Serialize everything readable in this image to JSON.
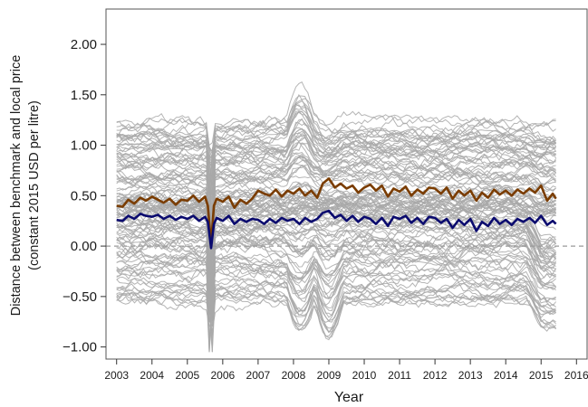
{
  "chart_data": {
    "type": "line",
    "xlabel": "Year",
    "ylabel_line1": "Distance between benchmark and local price",
    "ylabel_line2": "(constant 2015 USD per litre)",
    "xlim": [
      2002.7,
      2016.3
    ],
    "ylim": [
      -1.12,
      2.35
    ],
    "x_ticks": [
      2003,
      2004,
      2005,
      2006,
      2007,
      2008,
      2009,
      2010,
      2011,
      2012,
      2013,
      2014,
      2015,
      2016
    ],
    "x_tick_labels": [
      "2003",
      "2004",
      "2005",
      "2006",
      "2007",
      "2008",
      "2009",
      "2010",
      "2011",
      "2012",
      "2013",
      "2014",
      "2015",
      "2016"
    ],
    "y_ticks": [
      -1.0,
      -0.5,
      0.0,
      0.5,
      1.0,
      1.5,
      2.0
    ],
    "y_tick_labels": [
      "−1.00",
      "−0.50",
      "0.00",
      "0.50",
      "1.00",
      "1.50",
      "2.00"
    ],
    "reference_line": {
      "y": 0.0,
      "style": "dashed",
      "color": "#9a9a9a"
    },
    "grid": false,
    "gray_series": {
      "color": "#a8a8a8",
      "x_start": 2003.0,
      "x_end": 2015.42,
      "points": 148,
      "count": 120,
      "offset_range": [
        -0.55,
        1.25
      ],
      "note": "many individual country series drawn in gray around the summary lines"
    },
    "series": [
      {
        "color": "#7a3c00",
        "x": [
          2003.0,
          2003.17,
          2003.33,
          2003.5,
          2003.67,
          2003.83,
          2004.0,
          2004.17,
          2004.33,
          2004.5,
          2004.67,
          2004.83,
          2005.0,
          2005.17,
          2005.33,
          2005.5,
          2005.58,
          2005.67,
          2005.75,
          2005.83,
          2006.0,
          2006.17,
          2006.33,
          2006.5,
          2006.67,
          2006.83,
          2007.0,
          2007.17,
          2007.33,
          2007.5,
          2007.67,
          2007.83,
          2008.0,
          2008.17,
          2008.33,
          2008.5,
          2008.67,
          2008.83,
          2009.0,
          2009.17,
          2009.33,
          2009.5,
          2009.67,
          2009.83,
          2010.0,
          2010.17,
          2010.33,
          2010.5,
          2010.67,
          2010.83,
          2011.0,
          2011.17,
          2011.33,
          2011.5,
          2011.67,
          2011.83,
          2012.0,
          2012.17,
          2012.33,
          2012.5,
          2012.67,
          2012.83,
          2013.0,
          2013.17,
          2013.33,
          2013.5,
          2013.67,
          2013.83,
          2014.0,
          2014.17,
          2014.33,
          2014.5,
          2014.67,
          2014.83,
          2015.0,
          2015.17,
          2015.33,
          2015.42
        ],
        "values": [
          0.4,
          0.39,
          0.46,
          0.42,
          0.48,
          0.45,
          0.49,
          0.46,
          0.43,
          0.47,
          0.41,
          0.46,
          0.45,
          0.5,
          0.44,
          0.49,
          0.4,
          0.02,
          0.4,
          0.47,
          0.44,
          0.49,
          0.38,
          0.46,
          0.42,
          0.47,
          0.55,
          0.52,
          0.5,
          0.56,
          0.49,
          0.55,
          0.52,
          0.57,
          0.5,
          0.55,
          0.48,
          0.62,
          0.67,
          0.58,
          0.62,
          0.57,
          0.6,
          0.53,
          0.58,
          0.61,
          0.55,
          0.6,
          0.49,
          0.57,
          0.54,
          0.59,
          0.5,
          0.56,
          0.52,
          0.58,
          0.57,
          0.52,
          0.58,
          0.47,
          0.55,
          0.5,
          0.55,
          0.45,
          0.53,
          0.48,
          0.56,
          0.51,
          0.55,
          0.5,
          0.56,
          0.52,
          0.57,
          0.53,
          0.6,
          0.45,
          0.52,
          0.47
        ]
      },
      {
        "color": "#0a0a6e",
        "x": [
          2003.0,
          2003.17,
          2003.33,
          2003.5,
          2003.67,
          2003.83,
          2004.0,
          2004.17,
          2004.33,
          2004.5,
          2004.67,
          2004.83,
          2005.0,
          2005.17,
          2005.33,
          2005.5,
          2005.58,
          2005.67,
          2005.75,
          2005.83,
          2006.0,
          2006.17,
          2006.33,
          2006.5,
          2006.67,
          2006.83,
          2007.0,
          2007.17,
          2007.33,
          2007.5,
          2007.67,
          2007.83,
          2008.0,
          2008.17,
          2008.33,
          2008.5,
          2008.67,
          2008.83,
          2009.0,
          2009.17,
          2009.33,
          2009.5,
          2009.67,
          2009.83,
          2010.0,
          2010.17,
          2010.33,
          2010.5,
          2010.67,
          2010.83,
          2011.0,
          2011.17,
          2011.33,
          2011.5,
          2011.67,
          2011.83,
          2012.0,
          2012.17,
          2012.33,
          2012.5,
          2012.67,
          2012.83,
          2013.0,
          2013.17,
          2013.33,
          2013.5,
          2013.67,
          2013.83,
          2014.0,
          2014.17,
          2014.33,
          2014.5,
          2014.67,
          2014.83,
          2015.0,
          2015.17,
          2015.33,
          2015.42
        ],
        "values": [
          0.26,
          0.25,
          0.3,
          0.27,
          0.32,
          0.3,
          0.29,
          0.31,
          0.27,
          0.3,
          0.26,
          0.29,
          0.27,
          0.3,
          0.25,
          0.29,
          0.24,
          -0.02,
          0.22,
          0.28,
          0.25,
          0.3,
          0.22,
          0.27,
          0.24,
          0.27,
          0.26,
          0.22,
          0.27,
          0.23,
          0.28,
          0.25,
          0.27,
          0.22,
          0.28,
          0.24,
          0.27,
          0.33,
          0.35,
          0.28,
          0.31,
          0.25,
          0.3,
          0.24,
          0.29,
          0.27,
          0.22,
          0.28,
          0.2,
          0.29,
          0.27,
          0.3,
          0.23,
          0.28,
          0.22,
          0.29,
          0.28,
          0.23,
          0.27,
          0.18,
          0.26,
          0.21,
          0.27,
          0.15,
          0.24,
          0.2,
          0.28,
          0.22,
          0.26,
          0.21,
          0.27,
          0.24,
          0.28,
          0.23,
          0.3,
          0.21,
          0.25,
          0.22
        ]
      }
    ]
  }
}
